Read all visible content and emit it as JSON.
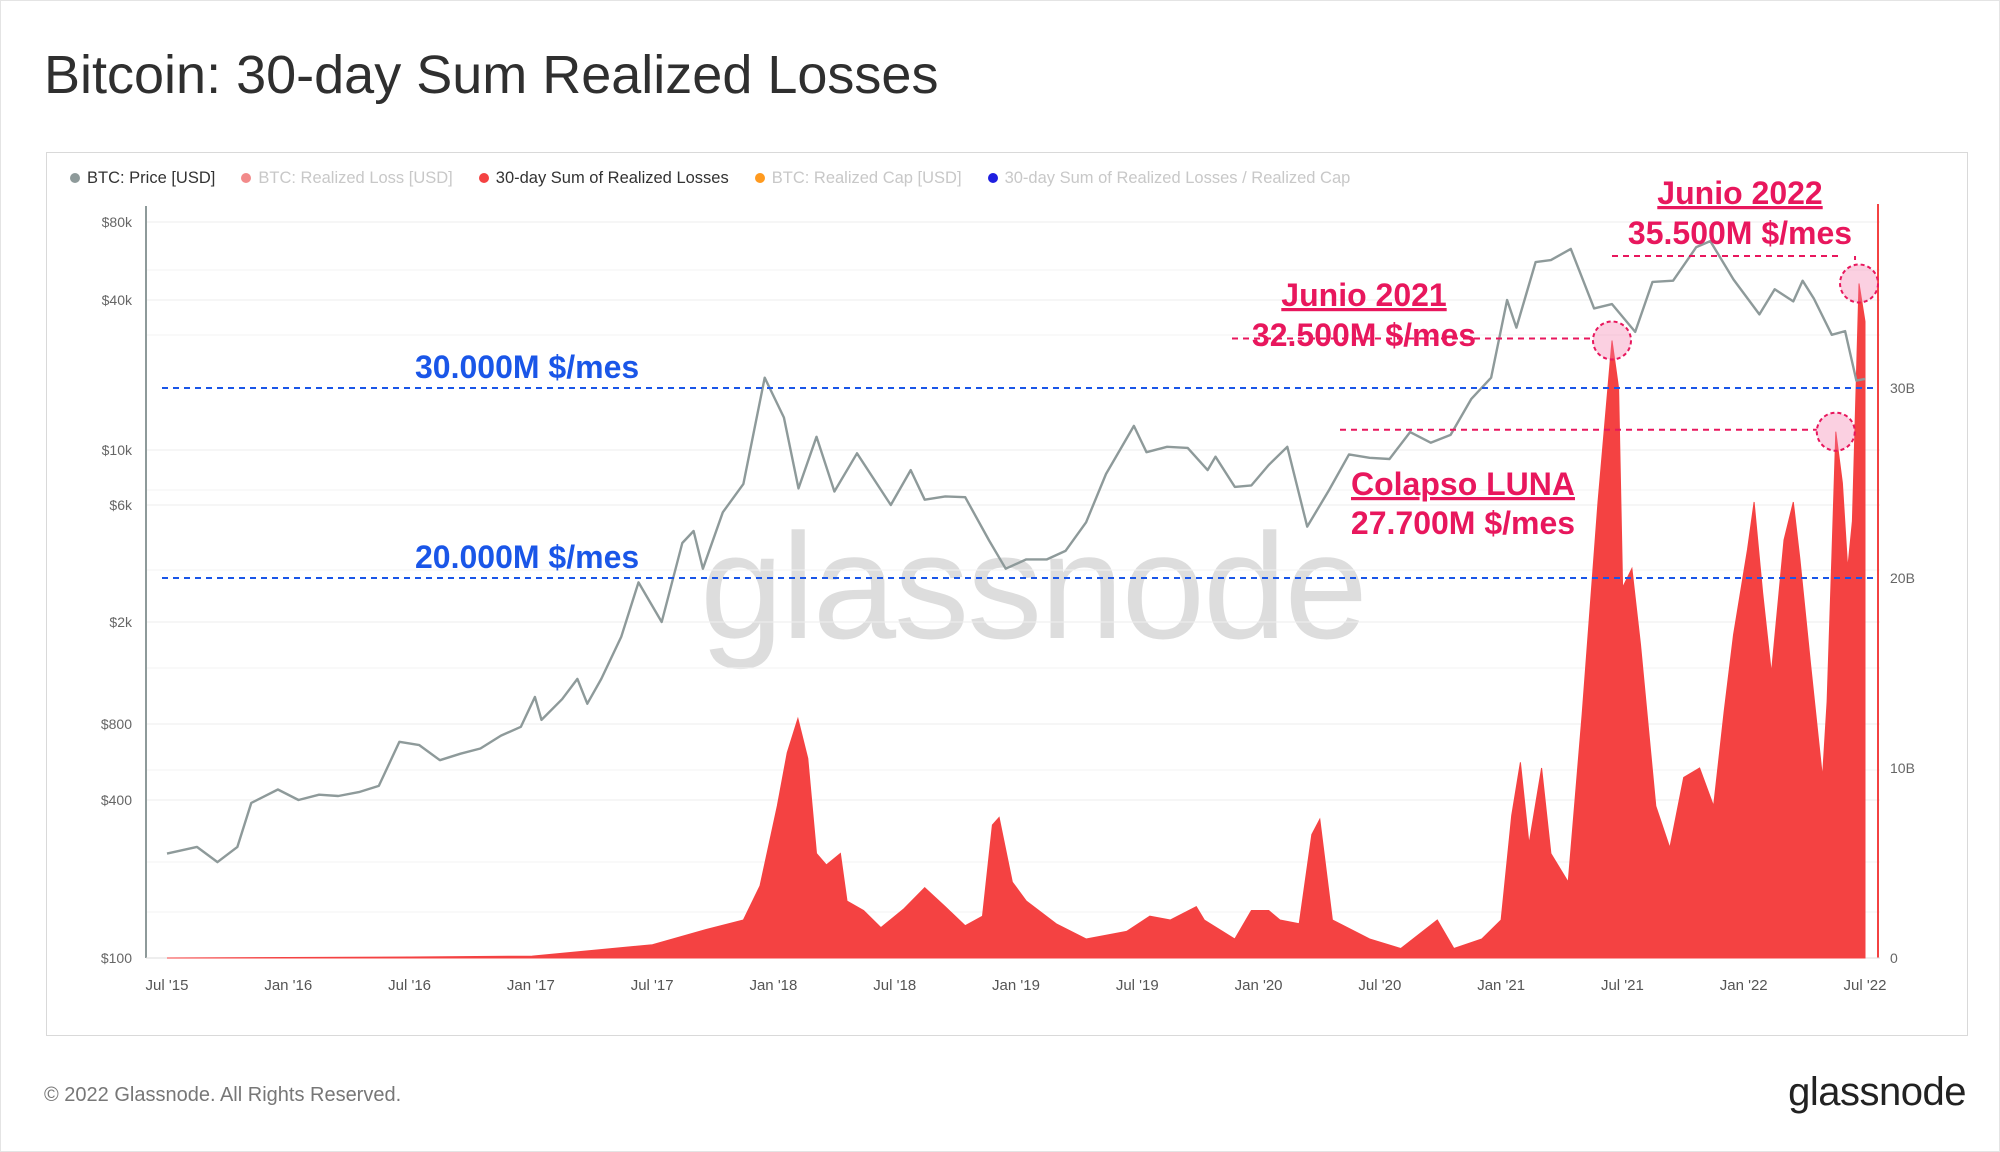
{
  "title": "Bitcoin: 30-day Sum Realized Losses",
  "footer": "© 2022 Glassnode. All Rights Reserved.",
  "logo": "glassnode",
  "watermark": "glassnode",
  "legend": [
    {
      "label": "BTC: Price [USD]",
      "color": "#8e9a9a",
      "active": true
    },
    {
      "label": "BTC: Realized Loss [USD]",
      "color": "#f28a8a",
      "active": false
    },
    {
      "label": "30-day Sum of Realized Losses",
      "color": "#f44242",
      "active": true
    },
    {
      "label": "BTC: Realized Cap [USD]",
      "color": "#ff9a1f",
      "active": false
    },
    {
      "label": "30-day Sum of Realized Losses / Realized Cap",
      "color": "#1f1fe0",
      "active": false
    }
  ],
  "annotations": {
    "line_30": "30.000M $/mes",
    "line_20": "20.000M $/mes",
    "junio_2021_title": "Junio 2021",
    "junio_2021_value": "32.500M $/mes",
    "junio_2022_title": "Junio 2022",
    "junio_2022_value": "35.500M $/mes",
    "luna_title": "Colapso LUNA",
    "luna_value": "27.700M $/mes"
  },
  "colors": {
    "price_line": "#8e9a9a",
    "loss_area": "#f44242",
    "annotation_red": "#e8175d",
    "annotation_blue": "#1a56e8"
  },
  "chart_data": {
    "type": "area",
    "x_ticks": [
      "Jul '15",
      "Jan '16",
      "Jul '16",
      "Jan '17",
      "Jul '17",
      "Jan '18",
      "Jul '18",
      "Jan '19",
      "Jul '19",
      "Jan '20",
      "Jul '20",
      "Jan '21",
      "Jul '21",
      "Jan '22",
      "Jul '22"
    ],
    "x_range": [
      "2015-07-01",
      "2022-07-01"
    ],
    "y_left": {
      "label": "",
      "scale": "log",
      "ticks": [
        "$100",
        "$400",
        "$800",
        "$2k",
        "$6k",
        "$10k",
        "$40k",
        "$80k"
      ],
      "tick_values": [
        100,
        400,
        800,
        2000,
        6000,
        10000,
        40000,
        80000
      ],
      "range": [
        100,
        80000
      ]
    },
    "y_right": {
      "label": "",
      "scale": "linear",
      "ticks": [
        "0",
        "10B",
        "20B",
        "30B"
      ],
      "tick_values": [
        0,
        10,
        20,
        30
      ],
      "unit": "B USD",
      "range": [
        0,
        40
      ]
    },
    "reference_lines_B": [
      30,
      20
    ],
    "series": [
      {
        "name": "BTC: Price [USD]",
        "axis": "left",
        "points": [
          [
            "2015-07-01",
            250
          ],
          [
            "2015-08-15",
            265
          ],
          [
            "2015-09-15",
            232
          ],
          [
            "2015-10-15",
            265
          ],
          [
            "2015-11-05",
            390
          ],
          [
            "2015-12-15",
            440
          ],
          [
            "2016-01-15",
            400
          ],
          [
            "2016-02-15",
            420
          ],
          [
            "2016-03-15",
            415
          ],
          [
            "2016-04-15",
            430
          ],
          [
            "2016-05-15",
            455
          ],
          [
            "2016-06-15",
            680
          ],
          [
            "2016-07-15",
            660
          ],
          [
            "2016-08-15",
            575
          ],
          [
            "2016-09-15",
            610
          ],
          [
            "2016-10-15",
            640
          ],
          [
            "2016-11-15",
            720
          ],
          [
            "2016-12-15",
            780
          ],
          [
            "2017-01-05",
            1020
          ],
          [
            "2017-01-15",
            830
          ],
          [
            "2017-02-15",
            1000
          ],
          [
            "2017-03-10",
            1200
          ],
          [
            "2017-03-25",
            960
          ],
          [
            "2017-04-15",
            1200
          ],
          [
            "2017-05-15",
            1750
          ],
          [
            "2017-06-10",
            2900
          ],
          [
            "2017-07-15",
            2000
          ],
          [
            "2017-08-15",
            4200
          ],
          [
            "2017-09-01",
            4700
          ],
          [
            "2017-09-15",
            3300
          ],
          [
            "2017-10-15",
            5600
          ],
          [
            "2017-11-15",
            7300
          ],
          [
            "2017-12-17",
            19500
          ],
          [
            "2018-01-15",
            13500
          ],
          [
            "2018-02-06",
            7000
          ],
          [
            "2018-03-05",
            11300
          ],
          [
            "2018-04-01",
            6800
          ],
          [
            "2018-05-05",
            9700
          ],
          [
            "2018-06-25",
            6000
          ],
          [
            "2018-07-25",
            8300
          ],
          [
            "2018-08-15",
            6300
          ],
          [
            "2018-09-15",
            6500
          ],
          [
            "2018-10-15",
            6450
          ],
          [
            "2018-11-20",
            4300
          ],
          [
            "2018-12-15",
            3300
          ],
          [
            "2019-01-15",
            3600
          ],
          [
            "2019-02-15",
            3600
          ],
          [
            "2019-03-15",
            3900
          ],
          [
            "2019-04-15",
            5100
          ],
          [
            "2019-05-15",
            8000
          ],
          [
            "2019-06-26",
            12500
          ],
          [
            "2019-07-15",
            9800
          ],
          [
            "2019-08-15",
            10300
          ],
          [
            "2019-09-15",
            10200
          ],
          [
            "2019-10-15",
            8300
          ],
          [
            "2019-10-27",
            9400
          ],
          [
            "2019-11-25",
            7100
          ],
          [
            "2019-12-20",
            7200
          ],
          [
            "2020-01-15",
            8700
          ],
          [
            "2020-02-12",
            10300
          ],
          [
            "2020-03-13",
            4900
          ],
          [
            "2020-04-15",
            6900
          ],
          [
            "2020-05-15",
            9600
          ],
          [
            "2020-06-15",
            9300
          ],
          [
            "2020-07-15",
            9200
          ],
          [
            "2020-08-15",
            11800
          ],
          [
            "2020-09-15",
            10700
          ],
          [
            "2020-10-15",
            11500
          ],
          [
            "2020-11-15",
            16000
          ],
          [
            "2020-12-15",
            19500
          ],
          [
            "2021-01-08",
            40000
          ],
          [
            "2021-01-22",
            31000
          ],
          [
            "2021-02-20",
            56000
          ],
          [
            "2021-03-15",
            57000
          ],
          [
            "2021-04-14",
            63000
          ],
          [
            "2021-05-19",
            37000
          ],
          [
            "2021-06-15",
            38500
          ],
          [
            "2021-07-20",
            29800
          ],
          [
            "2021-08-15",
            47000
          ],
          [
            "2021-09-15",
            47500
          ],
          [
            "2021-10-20",
            64000
          ],
          [
            "2021-11-10",
            67500
          ],
          [
            "2021-12-15",
            48000
          ],
          [
            "2022-01-23",
            35000
          ],
          [
            "2022-02-15",
            44000
          ],
          [
            "2022-03-15",
            39500
          ],
          [
            "2022-03-29",
            47500
          ],
          [
            "2022-04-15",
            40500
          ],
          [
            "2022-05-12",
            29000
          ],
          [
            "2022-06-01",
            30000
          ],
          [
            "2022-06-18",
            19000
          ],
          [
            "2022-07-01",
            19300
          ]
        ]
      },
      {
        "name": "30-day Sum of Realized Losses",
        "axis": "right",
        "unit": "B USD",
        "points": [
          [
            "2015-07-01",
            0
          ],
          [
            "2016-07-01",
            0.05
          ],
          [
            "2017-01-01",
            0.1
          ],
          [
            "2017-07-01",
            0.7
          ],
          [
            "2017-09-20",
            1.5
          ],
          [
            "2017-11-15",
            2.0
          ],
          [
            "2017-12-10",
            3.8
          ],
          [
            "2018-01-05",
            8.0
          ],
          [
            "2018-01-20",
            10.8
          ],
          [
            "2018-02-05",
            12.6
          ],
          [
            "2018-02-20",
            10.5
          ],
          [
            "2018-03-05",
            5.5
          ],
          [
            "2018-03-20",
            4.9
          ],
          [
            "2018-04-10",
            5.5
          ],
          [
            "2018-04-20",
            3.0
          ],
          [
            "2018-05-15",
            2.5
          ],
          [
            "2018-06-10",
            1.6
          ],
          [
            "2018-07-15",
            2.6
          ],
          [
            "2018-08-15",
            3.7
          ],
          [
            "2018-09-15",
            2.7
          ],
          [
            "2018-10-15",
            1.7
          ],
          [
            "2018-11-10",
            2.2
          ],
          [
            "2018-11-25",
            7.0
          ],
          [
            "2018-12-05",
            7.4
          ],
          [
            "2018-12-25",
            4.0
          ],
          [
            "2019-01-15",
            3.0
          ],
          [
            "2019-03-01",
            1.8
          ],
          [
            "2019-04-15",
            1.0
          ],
          [
            "2019-06-15",
            1.4
          ],
          [
            "2019-07-20",
            2.2
          ],
          [
            "2019-08-20",
            2.0
          ],
          [
            "2019-09-28",
            2.7
          ],
          [
            "2019-10-10",
            2.0
          ],
          [
            "2019-11-25",
            1.0
          ],
          [
            "2019-12-20",
            2.5
          ],
          [
            "2020-01-15",
            2.5
          ],
          [
            "2020-02-01",
            2.0
          ],
          [
            "2020-03-01",
            1.8
          ],
          [
            "2020-03-20",
            6.5
          ],
          [
            "2020-04-01",
            7.3
          ],
          [
            "2020-04-20",
            2.0
          ],
          [
            "2020-06-15",
            1.0
          ],
          [
            "2020-08-01",
            0.5
          ],
          [
            "2020-09-25",
            2.0
          ],
          [
            "2020-10-20",
            0.5
          ],
          [
            "2020-12-01",
            1.0
          ],
          [
            "2020-12-30",
            2.0
          ],
          [
            "2021-01-15",
            7.5
          ],
          [
            "2021-01-28",
            10.3
          ],
          [
            "2021-02-10",
            6.0
          ],
          [
            "2021-03-01",
            10.0
          ],
          [
            "2021-03-15",
            5.5
          ],
          [
            "2021-04-10",
            4.0
          ],
          [
            "2021-05-01",
            12.8
          ],
          [
            "2021-05-25",
            24.0
          ],
          [
            "2021-06-15",
            32.5
          ],
          [
            "2021-06-25",
            30.0
          ],
          [
            "2021-07-01",
            19.5
          ],
          [
            "2021-07-15",
            20.5
          ],
          [
            "2021-07-28",
            16.5
          ],
          [
            "2021-08-20",
            8.0
          ],
          [
            "2021-09-10",
            5.8
          ],
          [
            "2021-10-01",
            9.5
          ],
          [
            "2021-10-25",
            10.0
          ],
          [
            "2021-11-15",
            8.0
          ],
          [
            "2021-12-01",
            13.0
          ],
          [
            "2021-12-15",
            17.0
          ],
          [
            "2022-01-05",
            21.5
          ],
          [
            "2022-01-15",
            24.0
          ],
          [
            "2022-01-28",
            19.2
          ],
          [
            "2022-02-10",
            15.0
          ],
          [
            "2022-03-01",
            22.0
          ],
          [
            "2022-03-15",
            24.0
          ],
          [
            "2022-03-25",
            21.0
          ],
          [
            "2022-04-10",
            15.5
          ],
          [
            "2022-04-28",
            9.5
          ],
          [
            "2022-05-05",
            13.5
          ],
          [
            "2022-05-12",
            21.0
          ],
          [
            "2022-05-18",
            27.7
          ],
          [
            "2022-05-28",
            25.0
          ],
          [
            "2022-06-05",
            20.5
          ],
          [
            "2022-06-12",
            23.0
          ],
          [
            "2022-06-22",
            35.5
          ],
          [
            "2022-07-01",
            33.5
          ]
        ]
      }
    ]
  }
}
